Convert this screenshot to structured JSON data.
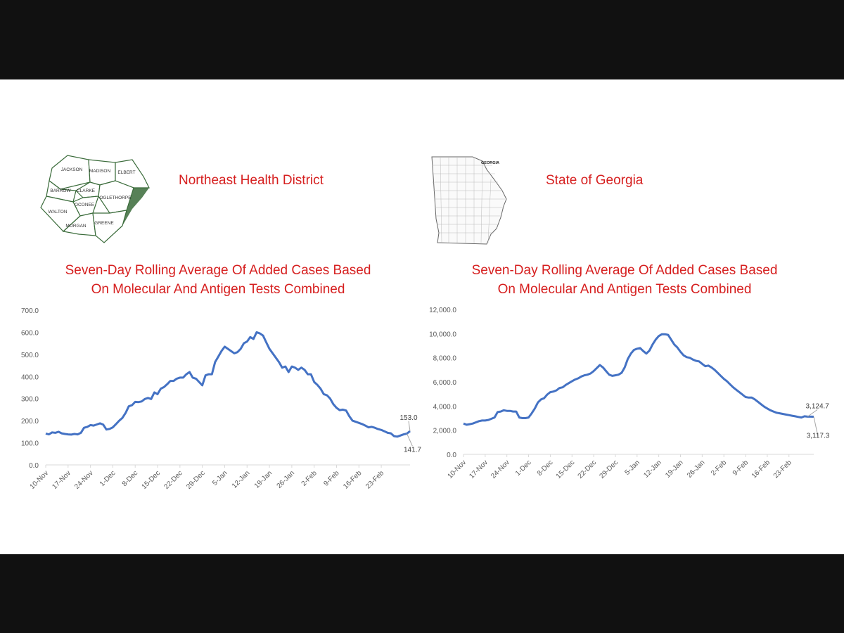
{
  "panels": [
    {
      "district_title": "Northeast Health District",
      "map_counties": [
        "JACKSON",
        "MADISON",
        "ELBERT",
        "BARROW",
        "CLARKE",
        "OCONEE",
        "OGLETHORPE",
        "WALTON",
        "MORGAN",
        "GREENE"
      ],
      "map_color": "#3a6b3a"
    },
    {
      "district_title": "State of Georgia",
      "map_label": "GEORGIA",
      "map_color": "#555555"
    }
  ],
  "colors": {
    "title": "#d61f1f",
    "line": "#4472c4",
    "axis_text": "#595959",
    "axis_line": "#d9d9d9",
    "callout_line": "#a6a6a6"
  },
  "chart_data": [
    {
      "type": "line",
      "title": "Seven-Day Rolling Average Of  Added Cases Based On Molecular And Antigen Tests Combined",
      "title_lines": [
        "Seven-Day Rolling Average Of  Added Cases Based",
        "On Molecular And Antigen Tests Combined"
      ],
      "ylim": [
        0,
        700
      ],
      "y_ticks": [
        "0.0",
        "100.0",
        "200.0",
        "300.0",
        "400.0",
        "500.0",
        "600.0",
        "700.0"
      ],
      "y_tick_values": [
        0,
        100,
        200,
        300,
        400,
        500,
        600,
        700
      ],
      "x_tick_labels": [
        "10-Nov",
        "17-Nov",
        "24-Nov",
        "1-Dec",
        "8-Dec",
        "15-Dec",
        "22-Dec",
        "29-Dec",
        "5-Jan",
        "12-Jan",
        "19-Jan",
        "26-Jan",
        "2-Feb",
        "9-Feb",
        "16-Feb",
        "23-Feb"
      ],
      "grid": false,
      "series": [
        {
          "values": [
            142,
            138,
            147,
            145,
            150,
            143,
            140,
            138,
            137,
            140,
            138,
            145,
            168,
            172,
            180,
            178,
            183,
            188,
            182,
            160,
            163,
            170,
            185,
            200,
            213,
            235,
            265,
            270,
            285,
            284,
            287,
            298,
            303,
            298,
            328,
            320,
            345,
            352,
            365,
            380,
            380,
            390,
            395,
            395,
            410,
            420,
            395,
            390,
            375,
            360,
            405,
            410,
            410,
            465,
            490,
            515,
            535,
            525,
            515,
            505,
            510,
            525,
            550,
            558,
            578,
            570,
            600,
            595,
            585,
            555,
            525,
            505,
            485,
            465,
            440,
            445,
            420,
            445,
            440,
            430,
            440,
            430,
            410,
            410,
            375,
            362,
            345,
            320,
            315,
            300,
            275,
            258,
            248,
            250,
            246,
            220,
            200,
            195,
            190,
            185,
            178,
            170,
            172,
            168,
            162,
            158,
            152,
            145,
            143,
            130,
            128,
            133,
            138,
            141.7,
            153
          ]
        }
      ],
      "annotations": [
        {
          "label": "153.0",
          "x_index": 114,
          "value": 153.0
        },
        {
          "label": "141.7",
          "x_index": 113,
          "value": 141.7
        }
      ]
    },
    {
      "type": "line",
      "title": "Seven-Day Rolling Average Of  Added Cases Based On Molecular And Antigen Tests Combined",
      "title_lines": [
        "Seven-Day Rolling Average Of  Added Cases Based",
        "On Molecular And Antigen Tests Combined"
      ],
      "ylim": [
        0,
        12000
      ],
      "y_ticks": [
        "0.0",
        "2,000.0",
        "4,000.0",
        "6,000.0",
        "8,000.0",
        "10,000.0",
        "12,000.0"
      ],
      "y_tick_values": [
        0,
        2000,
        4000,
        6000,
        8000,
        10000,
        12000
      ],
      "x_tick_labels": [
        "10-Nov",
        "17-Nov",
        "24-Nov",
        "1-Dec",
        "8-Dec",
        "15-Dec",
        "22-Dec",
        "29-Dec",
        "5-Jan",
        "12-Jan",
        "19-Jan",
        "26-Jan",
        "2-Feb",
        "9-Feb",
        "16-Feb",
        "23-Feb"
      ],
      "grid": false,
      "series": [
        {
          "values": [
            2550,
            2450,
            2500,
            2550,
            2650,
            2750,
            2800,
            2800,
            2850,
            2950,
            3050,
            3500,
            3550,
            3650,
            3600,
            3600,
            3550,
            3550,
            3050,
            3000,
            3000,
            3050,
            3400,
            3800,
            4300,
            4550,
            4650,
            4950,
            5150,
            5200,
            5300,
            5500,
            5550,
            5750,
            5900,
            6050,
            6200,
            6300,
            6450,
            6550,
            6600,
            6700,
            6900,
            7150,
            7400,
            7200,
            6900,
            6600,
            6500,
            6550,
            6600,
            6750,
            7200,
            7900,
            8350,
            8650,
            8750,
            8800,
            8550,
            8350,
            8600,
            9100,
            9500,
            9800,
            9950,
            9950,
            9900,
            9500,
            9100,
            8850,
            8500,
            8200,
            8050,
            8000,
            7850,
            7750,
            7700,
            7500,
            7300,
            7350,
            7200,
            7000,
            6750,
            6500,
            6250,
            6050,
            5800,
            5550,
            5350,
            5150,
            4950,
            4750,
            4700,
            4700,
            4550,
            4350,
            4150,
            3950,
            3800,
            3650,
            3550,
            3450,
            3400,
            3350,
            3300,
            3250,
            3200,
            3150,
            3100,
            3050,
            3150,
            3124.7,
            3120,
            3117.3
          ]
        }
      ],
      "annotations": [
        {
          "label": "3,124.7",
          "x_index": 111,
          "value": 3124.7
        },
        {
          "label": "3,117.3",
          "x_index": 113,
          "value": 3117.3
        }
      ]
    }
  ]
}
